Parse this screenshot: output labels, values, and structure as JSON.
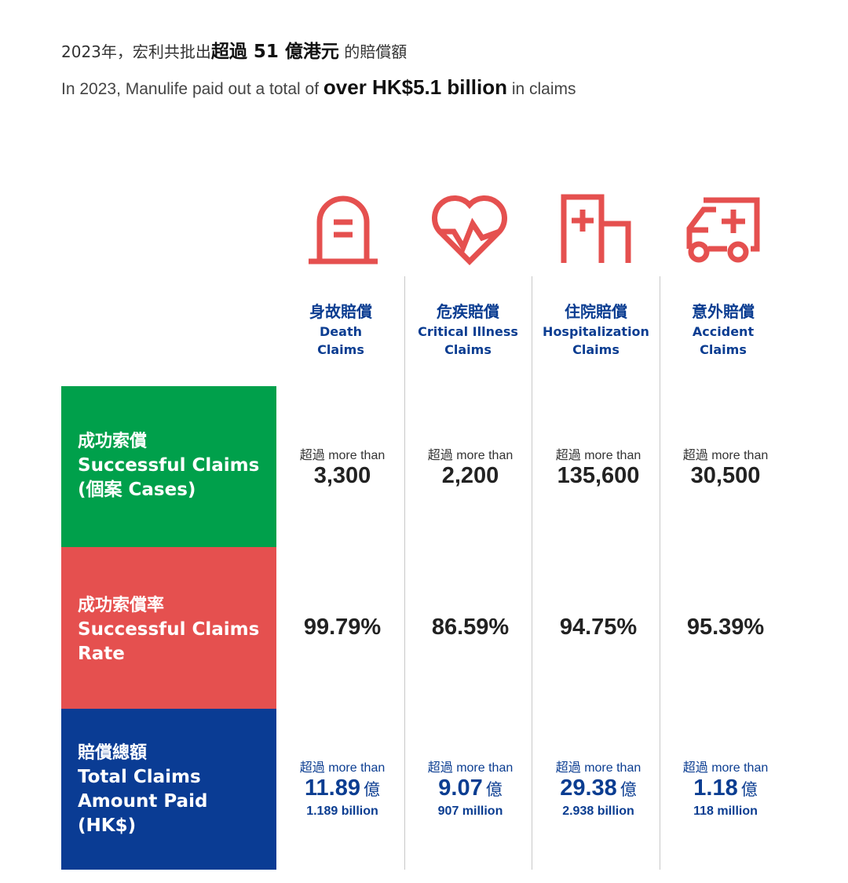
{
  "header": {
    "zh_prefix": "2023年，宏利共批出",
    "zh_bold": "超過 51 億港元",
    "zh_suffix": " 的賠償額",
    "en_prefix": "In 2023, Manulife paid out a total of ",
    "en_bold": "over HK$5.1 billion",
    "en_suffix": " in claims"
  },
  "colors": {
    "green": "#00a04b",
    "red": "#e5504f",
    "navy": "#0a3c94",
    "icon_red": "#e5504f"
  },
  "columns": [
    {
      "icon": "tombstone-icon",
      "zh": "身故賠償",
      "en": "Death\nClaims"
    },
    {
      "icon": "heart-pulse-icon",
      "zh": "危疾賠償",
      "en": "Critical Illness\nClaims"
    },
    {
      "icon": "hospital-icon",
      "zh": "住院賠償",
      "en": "Hospitalization\nClaims"
    },
    {
      "icon": "ambulance-icon",
      "zh": "意外賠償",
      "en": "Accident\nClaims"
    }
  ],
  "rows": {
    "cases": {
      "zh": "成功索償",
      "en": "Successful Claims\n(個案 Cases)",
      "prefix": "超過 more than",
      "values": [
        "3,300",
        "2,200",
        "135,600",
        "30,500"
      ]
    },
    "rate": {
      "zh": "成功索償率",
      "en": "Successful Claims\nRate",
      "values": [
        "99.79%",
        "86.59%",
        "94.75%",
        "95.39%"
      ]
    },
    "amount": {
      "zh": "賠償總額",
      "en": "Total Claims\nAmount Paid\n(HK$)",
      "prefix": "超過 more than",
      "unit": "億",
      "values": [
        "11.89",
        "9.07",
        "29.38",
        "1.18"
      ],
      "sub": [
        "1.189 billion",
        "907 million",
        "2.938 billion",
        "118 million"
      ]
    }
  }
}
